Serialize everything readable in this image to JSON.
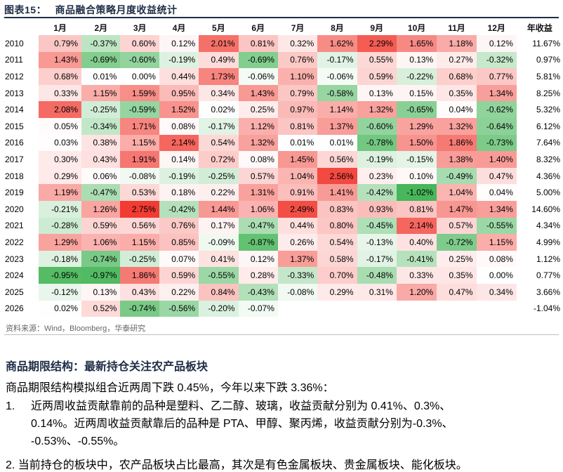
{
  "figure": {
    "label": "图表15：",
    "title": "商品融合策略月度收益统计",
    "source": "资料来源：Wind，Bloomberg，华泰研究"
  },
  "colors": {
    "title_navy": "#1f2d46",
    "positive_max": "#f23b32",
    "negative_max": "#48b65a",
    "neutral": "#ffffff"
  },
  "chart_data": {
    "type": "heatmap",
    "title": "商品融合策略月度收益统计",
    "columns": [
      "1月",
      "2月",
      "3月",
      "4月",
      "5月",
      "6月",
      "7月",
      "8月",
      "9月",
      "10月",
      "11月",
      "12月"
    ],
    "annual_header": "年收益",
    "years": [
      "2010",
      "2011",
      "2012",
      "2013",
      "2014",
      "2015",
      "2016",
      "2017",
      "2018",
      "2019",
      "2020",
      "2021",
      "2022",
      "2023",
      "2024",
      "2025",
      "2026"
    ],
    "values": [
      [
        "0.79%",
        "-0.37%",
        "0.60%",
        "0.12%",
        "2.01%",
        "0.81%",
        "0.32%",
        "1.62%",
        "2.29%",
        "1.65%",
        "1.18%",
        "0.12%"
      ],
      [
        "1.43%",
        "-0.69%",
        "-0.60%",
        "-0.19%",
        "0.49%",
        "-0.69%",
        "0.76%",
        "-0.17%",
        "0.55%",
        "0.13%",
        "0.27%",
        "-0.32%"
      ],
      [
        "0.68%",
        "0.01%",
        "0.00%",
        "0.44%",
        "1.73%",
        "-0.06%",
        "1.10%",
        "-0.06%",
        "0.59%",
        "-0.22%",
        "0.68%",
        "0.77%"
      ],
      [
        "0.33%",
        "1.15%",
        "1.59%",
        "0.95%",
        "0.34%",
        "1.43%",
        "0.79%",
        "-0.58%",
        "0.13%",
        "0.15%",
        "0.35%",
        "1.34%"
      ],
      [
        "2.08%",
        "-0.25%",
        "-0.59%",
        "1.52%",
        "0.02%",
        "0.25%",
        "0.97%",
        "1.14%",
        "1.32%",
        "-0.65%",
        "0.04%",
        "-0.62%"
      ],
      [
        "0.05%",
        "-0.34%",
        "1.71%",
        "0.08%",
        "-0.17%",
        "1.12%",
        "0.81%",
        "1.37%",
        "-0.60%",
        "1.29%",
        "1.32%",
        "-0.64%"
      ],
      [
        "0.03%",
        "0.38%",
        "1.15%",
        "2.14%",
        "0.54%",
        "1.32%",
        "0.01%",
        "0.01%",
        "-0.78%",
        "1.50%",
        "1.86%",
        "-0.73%"
      ],
      [
        "0.30%",
        "0.43%",
        "1.91%",
        "0.14%",
        "0.72%",
        "0.08%",
        "1.45%",
        "0.56%",
        "-0.19%",
        "-0.15%",
        "1.38%",
        "1.40%"
      ],
      [
        "0.29%",
        "0.06%",
        "-0.08%",
        "-0.19%",
        "-0.25%",
        "0.57%",
        "1.04%",
        "2.56%",
        "0.23%",
        "0.10%",
        "-0.49%",
        "0.47%"
      ],
      [
        "1.19%",
        "-0.47%",
        "0.53%",
        "0.18%",
        "0.22%",
        "1.31%",
        "0.91%",
        "1.41%",
        "-0.42%",
        "-1.02%",
        "1.04%",
        "0.04%"
      ],
      [
        "-0.21%",
        "1.26%",
        "2.75%",
        "-0.42%",
        "1.44%",
        "1.06%",
        "2.49%",
        "0.83%",
        "0.93%",
        "0.81%",
        "1.47%",
        "1.34%"
      ],
      [
        "-0.28%",
        "0.59%",
        "0.56%",
        "0.76%",
        "0.17%",
        "-0.47%",
        "0.44%",
        "0.80%",
        "-0.45%",
        "2.14%",
        "0.57%",
        "-0.55%"
      ],
      [
        "1.29%",
        "1.06%",
        "1.15%",
        "0.85%",
        "-0.09%",
        "-0.87%",
        "0.26%",
        "0.54%",
        "-0.13%",
        "0.40%",
        "-0.72%",
        "1.15%"
      ],
      [
        "-0.18%",
        "-0.74%",
        "-0.25%",
        "0.07%",
        "0.41%",
        "0.12%",
        "1.37%",
        "0.58%",
        "-0.17%",
        "-0.41%",
        "0.25%",
        "0.08%"
      ],
      [
        "-0.95%",
        "-0.97%",
        "1.86%",
        "0.59%",
        "-0.55%",
        "0.28%",
        "-0.33%",
        "0.70%",
        "-0.48%",
        "0.33%",
        "0.35%",
        "0.00%"
      ],
      [
        "-0.12%",
        "0.13%",
        "0.43%",
        "0.22%",
        "0.84%",
        "-0.43%",
        "-0.08%",
        "0.29%",
        "0.31%",
        "1.20%",
        "0.47%",
        "0.34%"
      ],
      [
        "0.02%",
        "0.52%",
        "-0.74%",
        "-0.56%",
        "-0.20%",
        "-0.07%",
        "",
        "",
        "",
        "",
        "",
        ""
      ]
    ],
    "annual": [
      "11.67%",
      "0.97%",
      "5.81%",
      "8.25%",
      "5.32%",
      "6.12%",
      "7.64%",
      "8.32%",
      "4.36%",
      "5.00%",
      "14.60%",
      "4.34%",
      "4.99%",
      "1.12%",
      "0.77%",
      "3.66%",
      "-1.04%"
    ]
  },
  "section": {
    "heading": "商品期限结构：最新持仓关注农产品板块",
    "summary": "商品期限结构模拟组合近两周下跌 0.45%，今年以来下跌 3.36%：",
    "item1_number": "1.",
    "item1_line1": "近两周收益贡献靠前的品种是塑料、乙二醇、玻璃，收益贡献分别为  0.41%、0.3%、",
    "item1_line2": "0.14%。近两周收益贡献靠后的品种是 PTA、甲醇、聚丙烯，收益贡献分别为-0.3%、",
    "item1_line3": "-0.53%、-0.55%。",
    "item2_partial": "2.   当前持仓的板块中，农产品板块占比最高，其次是有色金属板块、贵金属板块、能化板块。"
  }
}
